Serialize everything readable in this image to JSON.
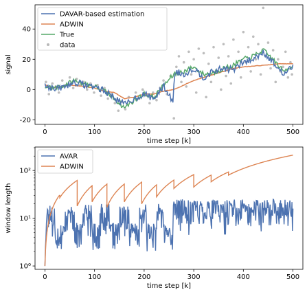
{
  "colors": {
    "blue": "#4c72b0",
    "orange": "#dd8452",
    "green": "#55a868",
    "gray": "#9a9a9a"
  },
  "chart_data": [
    {
      "type": "line",
      "xlabel": "time step [k]",
      "ylabel": "signal",
      "xlim": [
        -20,
        520
      ],
      "ylim": [
        -23,
        56
      ],
      "xticks": [
        0,
        100,
        200,
        300,
        400,
        500
      ],
      "yticks": [
        -20,
        0,
        20,
        40
      ],
      "legend_position": "top-left",
      "x_end": 500,
      "series": [
        {
          "name": "DAVAR-based estimation",
          "kind": "line",
          "color": "blue",
          "points": [
            [
              0,
              3
            ],
            [
              20,
              0
            ],
            [
              40,
              2
            ],
            [
              60,
              5
            ],
            [
              80,
              3
            ],
            [
              100,
              2
            ],
            [
              120,
              -1
            ],
            [
              140,
              -5
            ],
            [
              160,
              -10
            ],
            [
              180,
              -6
            ],
            [
              200,
              -3
            ],
            [
              220,
              -6
            ],
            [
              240,
              2
            ],
            [
              258,
              -8
            ],
            [
              262,
              12
            ],
            [
              280,
              10
            ],
            [
              300,
              14
            ],
            [
              320,
              8
            ],
            [
              340,
              12
            ],
            [
              360,
              14
            ],
            [
              380,
              13
            ],
            [
              400,
              18
            ],
            [
              420,
              20
            ],
            [
              440,
              25
            ],
            [
              460,
              18
            ],
            [
              480,
              10
            ],
            [
              500,
              15
            ]
          ]
        },
        {
          "name": "ADWIN",
          "kind": "line",
          "color": "orange",
          "points": [
            [
              0,
              3
            ],
            [
              20,
              1
            ],
            [
              50,
              3
            ],
            [
              80,
              2
            ],
            [
              100,
              1
            ],
            [
              120,
              -1
            ],
            [
              140,
              -2
            ],
            [
              160,
              -6
            ],
            [
              180,
              -5
            ],
            [
              200,
              -3
            ],
            [
              220,
              -3
            ],
            [
              240,
              -1
            ],
            [
              260,
              0
            ],
            [
              280,
              3
            ],
            [
              300,
              6
            ],
            [
              320,
              8
            ],
            [
              340,
              10
            ],
            [
              360,
              12
            ],
            [
              380,
              14
            ],
            [
              400,
              15
            ],
            [
              440,
              16
            ],
            [
              470,
              17
            ],
            [
              500,
              17
            ]
          ]
        },
        {
          "name": "True",
          "kind": "line",
          "color": "green",
          "points": [
            [
              0,
              2
            ],
            [
              20,
              1
            ],
            [
              40,
              3
            ],
            [
              60,
              6
            ],
            [
              80,
              4
            ],
            [
              100,
              2
            ],
            [
              120,
              -1
            ],
            [
              140,
              -6
            ],
            [
              160,
              -12
            ],
            [
              180,
              -7
            ],
            [
              200,
              -3
            ],
            [
              220,
              -5
            ],
            [
              240,
              3
            ],
            [
              260,
              10
            ],
            [
              280,
              12
            ],
            [
              300,
              15
            ],
            [
              320,
              10
            ],
            [
              340,
              11
            ],
            [
              360,
              14
            ],
            [
              380,
              16
            ],
            [
              400,
              20
            ],
            [
              420,
              22
            ],
            [
              440,
              26
            ],
            [
              460,
              20
            ],
            [
              480,
              12
            ],
            [
              500,
              16
            ]
          ]
        },
        {
          "name": "data",
          "kind": "scatter",
          "color": "gray",
          "points": [
            [
              2,
              5
            ],
            [
              8,
              -3
            ],
            [
              15,
              4
            ],
            [
              22,
              2
            ],
            [
              28,
              -2
            ],
            [
              35,
              6
            ],
            [
              42,
              3
            ],
            [
              50,
              8
            ],
            [
              57,
              1
            ],
            [
              64,
              7
            ],
            [
              71,
              3
            ],
            [
              78,
              5
            ],
            [
              85,
              0
            ],
            [
              92,
              4
            ],
            [
              99,
              -2
            ],
            [
              106,
              3
            ],
            [
              113,
              -4
            ],
            [
              120,
              1
            ],
            [
              127,
              -6
            ],
            [
              134,
              -3
            ],
            [
              141,
              -9
            ],
            [
              148,
              -14
            ],
            [
              155,
              -8
            ],
            [
              162,
              -13
            ],
            [
              169,
              -5
            ],
            [
              176,
              -9
            ],
            [
              183,
              -2
            ],
            [
              190,
              -6
            ],
            [
              197,
              0
            ],
            [
              204,
              -4
            ],
            [
              211,
              -9
            ],
            [
              218,
              -2
            ],
            [
              225,
              -7
            ],
            [
              232,
              1
            ],
            [
              239,
              6
            ],
            [
              246,
              -3
            ],
            [
              253,
              9
            ],
            [
              260,
              -19
            ],
            [
              265,
              15
            ],
            [
              270,
              22
            ],
            [
              275,
              5
            ],
            [
              280,
              18
            ],
            [
              285,
              2
            ],
            [
              290,
              25
            ],
            [
              295,
              10
            ],
            [
              300,
              20
            ],
            [
              305,
              -2
            ],
            [
              310,
              27
            ],
            [
              315,
              8
            ],
            [
              320,
              24
            ],
            [
              325,
              -5
            ],
            [
              330,
              17
            ],
            [
              335,
              5
            ],
            [
              340,
              28
            ],
            [
              345,
              12
            ],
            [
              350,
              21
            ],
            [
              355,
              0
            ],
            [
              360,
              30
            ],
            [
              365,
              9
            ],
            [
              370,
              22
            ],
            [
              375,
              4
            ],
            [
              380,
              33
            ],
            [
              385,
              14
            ],
            [
              390,
              25
            ],
            [
              395,
              8
            ],
            [
              400,
              38
            ],
            [
              405,
              18
            ],
            [
              410,
              28
            ],
            [
              415,
              12
            ],
            [
              420,
              35
            ],
            [
              425,
              20
            ],
            [
              430,
              30
            ],
            [
              435,
              10
            ],
            [
              440,
              54
            ],
            [
              445,
              22
            ],
            [
              450,
              31
            ],
            [
              455,
              14
            ],
            [
              460,
              26
            ],
            [
              465,
              5
            ],
            [
              470,
              20
            ],
            [
              475,
              12
            ],
            [
              480,
              15
            ],
            [
              485,
              25
            ],
            [
              490,
              8
            ],
            [
              495,
              18
            ],
            [
              498,
              10
            ]
          ]
        }
      ]
    },
    {
      "type": "line",
      "xlabel": "time step [k]",
      "ylabel": "window length",
      "yscale": "log",
      "xlim": [
        -20,
        520
      ],
      "ylim": [
        0.85,
        310
      ],
      "xticks": [
        0,
        100,
        200,
        300,
        400,
        500
      ],
      "yticks": [
        1,
        10,
        100
      ],
      "ytick_labels": [
        "10⁰",
        "10¹",
        "10²"
      ],
      "legend_position": "top-left",
      "series": [
        {
          "name": "AVAR",
          "color": "blue",
          "seed": 17,
          "low_dips": [
            [
              20,
              40
            ],
            [
              60,
              75
            ],
            [
              95,
              110
            ],
            [
              130,
              150
            ],
            [
              170,
              190
            ],
            [
              205,
              225
            ],
            [
              240,
              258
            ]
          ]
        },
        {
          "name": "ADWIN",
          "color": "orange",
          "resets": [
            [
              0,
              1
            ],
            [
              30,
              27
            ],
            [
              65,
              18
            ],
            [
              95,
              22
            ],
            [
              125,
              17
            ],
            [
              160,
              22
            ],
            [
              195,
              20
            ],
            [
              225,
              28
            ],
            [
              260,
              42
            ],
            [
              300,
              45
            ],
            [
              335,
              58
            ],
            [
              370,
              80
            ],
            [
              500,
              230
            ]
          ]
        }
      ]
    }
  ]
}
